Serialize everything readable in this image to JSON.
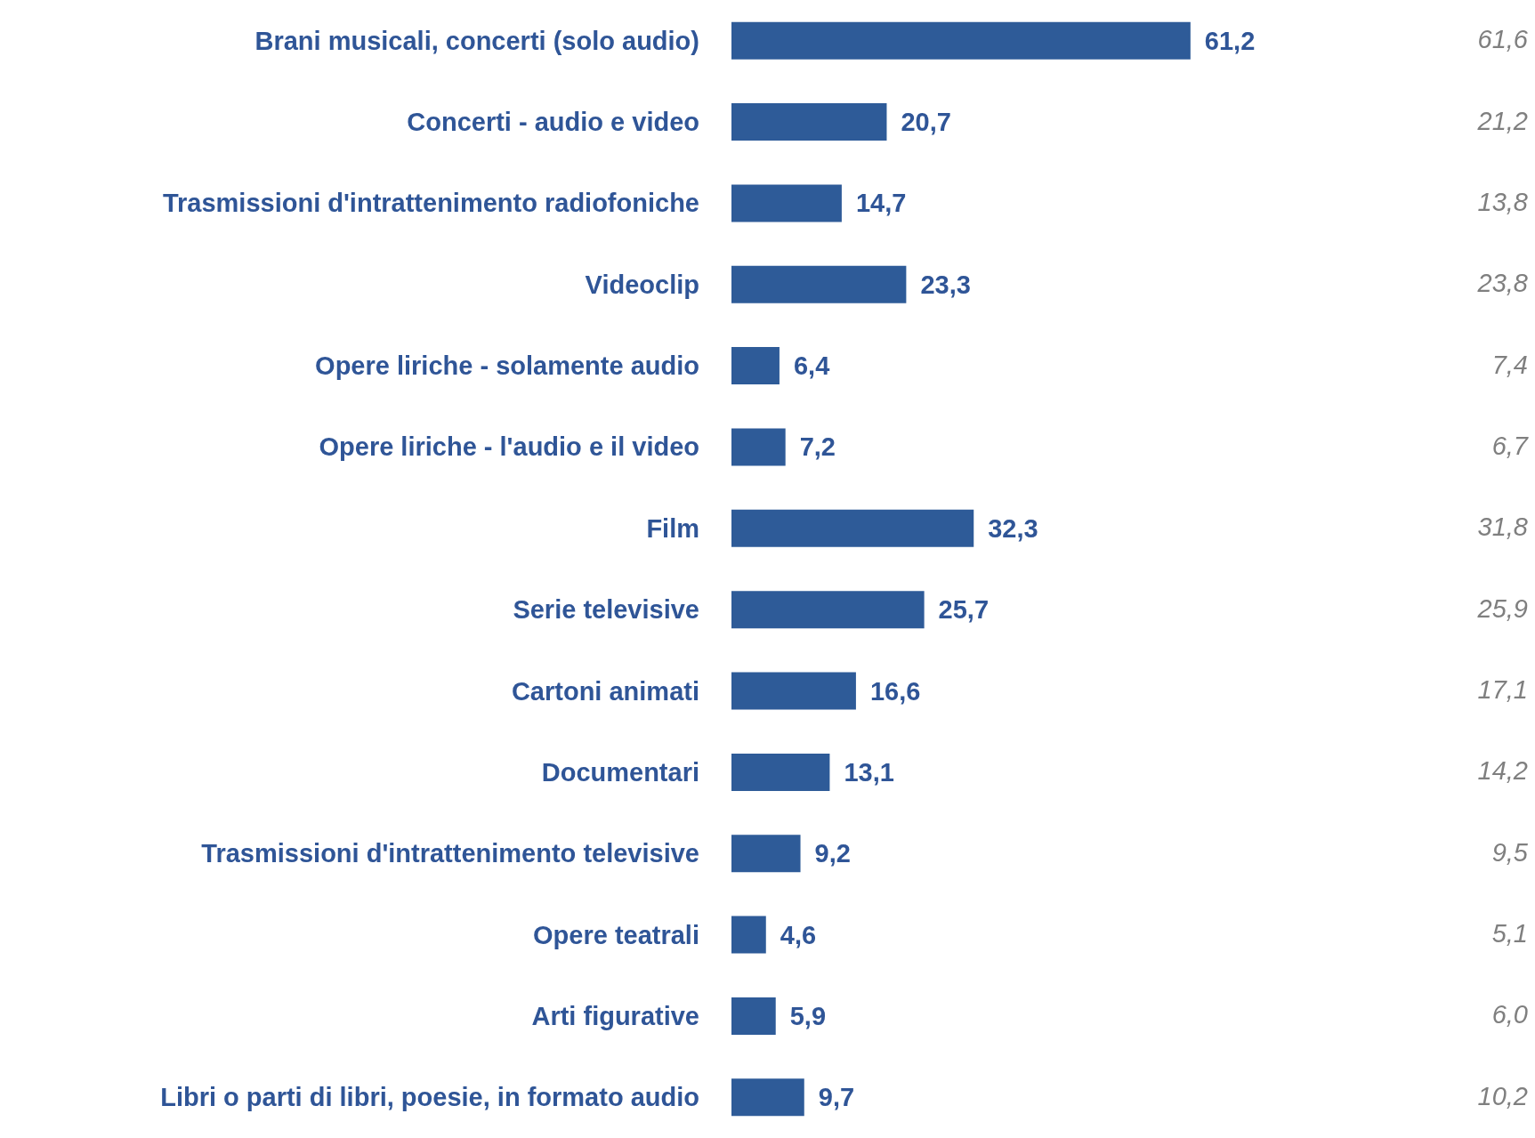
{
  "chart_data": {
    "type": "bar",
    "orientation": "horizontal",
    "categories": [
      "Brani musicali, concerti (solo audio)",
      "Concerti - audio e video",
      "Trasmissioni d'intrattenimento radiofoniche",
      "Videoclip",
      "Opere liriche - solamente audio",
      "Opere liriche - l'audio e il video",
      "Film",
      "Serie televisive",
      "Cartoni animati",
      "Documentari",
      "Trasmissioni d'intrattenimento televisive",
      "Opere teatrali",
      "Arti figurative",
      "Libri o parti di libri, poesie, in formato audio"
    ],
    "values": [
      61.2,
      20.7,
      14.7,
      23.3,
      6.4,
      7.2,
      32.3,
      25.7,
      16.6,
      13.1,
      9.2,
      4.6,
      5.9,
      9.7
    ],
    "value_labels": [
      "61,2",
      "20,7",
      "14,7",
      "23,3",
      "6,4",
      "7,2",
      "32,3",
      "25,7",
      "16,6",
      "13,1",
      "9,2",
      "4,6",
      "5,9",
      "9,7"
    ],
    "color": "#2e5b98",
    "tick_labels": "y",
    "annotations": [
      "61,6",
      "21,2",
      "13,8",
      "23,8",
      "7,4",
      "6,7",
      "31,8",
      "25,9",
      "17,1",
      "14,2",
      "9,5",
      "5,1",
      "6,0",
      "10,2"
    ]
  }
}
